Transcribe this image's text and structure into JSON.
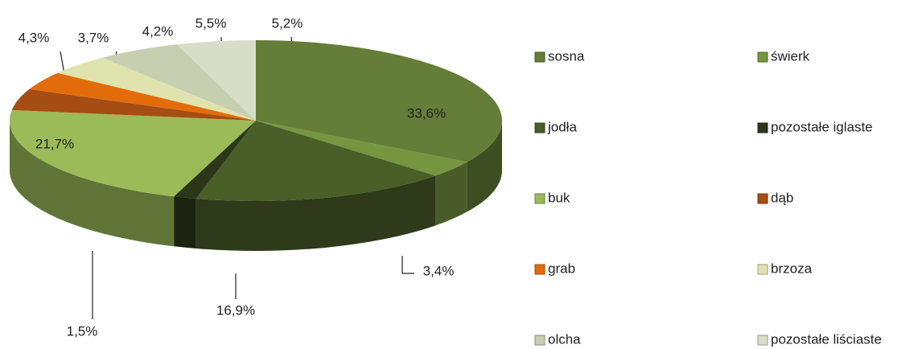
{
  "chart_data": {
    "type": "pie3d",
    "categories": [
      "sosna",
      "świerk",
      "jodła",
      "pozostałe iglaste",
      "buk",
      "dąb",
      "grab",
      "brzoza",
      "olcha",
      "pozostałe liściaste"
    ],
    "values": [
      33.6,
      3.4,
      16.9,
      1.5,
      21.7,
      4.3,
      3.7,
      4.2,
      5.5,
      5.2
    ],
    "value_labels": [
      "33,6%",
      "3,4%",
      "16,9%",
      "1,5%",
      "21,7%",
      "4,3%",
      "3,7%",
      "4,2%",
      "5,5%",
      "5,2%"
    ],
    "colors": [
      "#647d38",
      "#76953f",
      "#4a5e28",
      "#2b3718",
      "#9bbb59",
      "#a54d12",
      "#e36c0a",
      "#e0e3ae",
      "#c6cfb0",
      "#d8ddc8"
    ],
    "legend": "right"
  }
}
